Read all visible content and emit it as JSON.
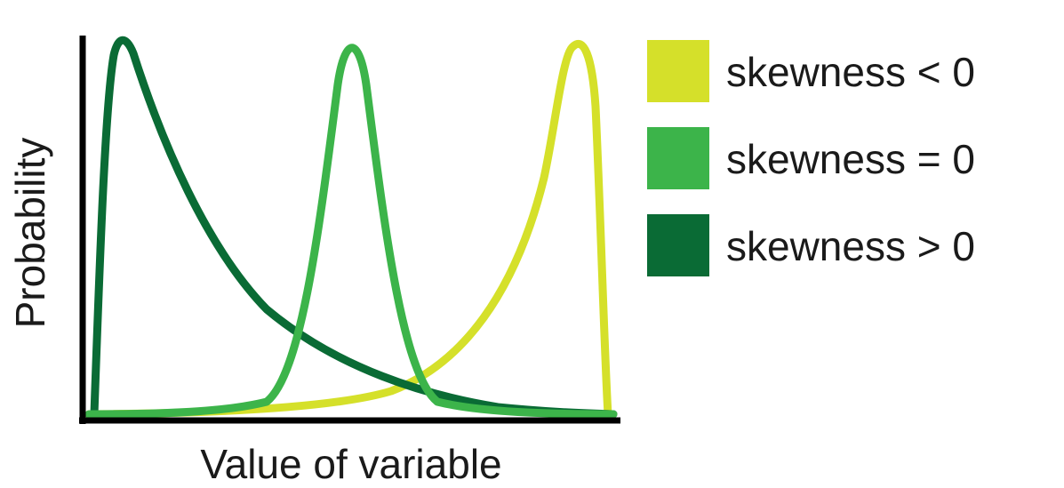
{
  "chart_data": {
    "type": "line",
    "xlabel": "Value of variable",
    "ylabel": "Probability",
    "grid": false,
    "legend_position": "right",
    "series": [
      {
        "name": "skewness < 0",
        "color": "#d5e02a",
        "shape": "left-skewed",
        "peak_relative_x": 0.92
      },
      {
        "name": "skewness = 0",
        "color": "#3cb44a",
        "shape": "symmetric",
        "peak_relative_x": 0.5
      },
      {
        "name": "skewness > 0",
        "color": "#0a6b35",
        "shape": "right-skewed",
        "peak_relative_x": 0.08
      }
    ]
  }
}
